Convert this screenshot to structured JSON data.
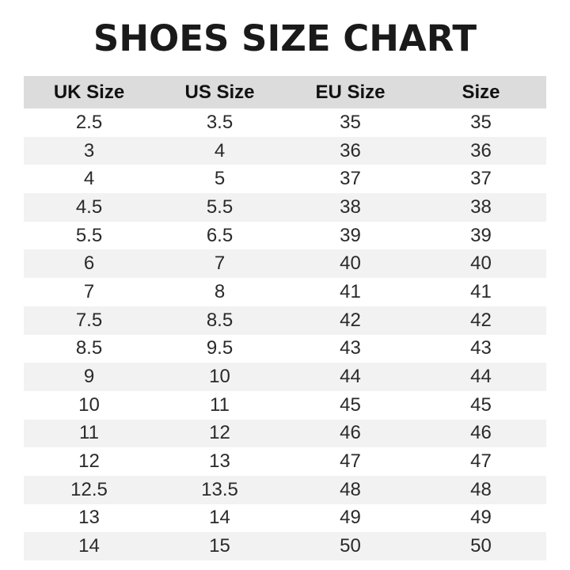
{
  "title": "SHOES SIZE CHART",
  "table": {
    "headers": [
      "UK Size",
      "US Size",
      "EU Size",
      "Size"
    ],
    "rows": [
      [
        "2.5",
        "3.5",
        "35",
        "35"
      ],
      [
        "3",
        "4",
        "36",
        "36"
      ],
      [
        "4",
        "5",
        "37",
        "37"
      ],
      [
        "4.5",
        "5.5",
        "38",
        "38"
      ],
      [
        "5.5",
        "6.5",
        "39",
        "39"
      ],
      [
        "6",
        "7",
        "40",
        "40"
      ],
      [
        "7",
        "8",
        "41",
        "41"
      ],
      [
        "7.5",
        "8.5",
        "42",
        "42"
      ],
      [
        "8.5",
        "9.5",
        "43",
        "43"
      ],
      [
        "9",
        "10",
        "44",
        "44"
      ],
      [
        "10",
        "11",
        "45",
        "45"
      ],
      [
        "11",
        "12",
        "46",
        "46"
      ],
      [
        "12",
        "13",
        "47",
        "47"
      ],
      [
        "12.5",
        "13.5",
        "48",
        "48"
      ],
      [
        "13",
        "14",
        "49",
        "49"
      ],
      [
        "14",
        "15",
        "50",
        "50"
      ]
    ]
  },
  "colors": {
    "header_bg": "#dcdcdc",
    "stripe_bg": "#f2f2f2",
    "text": "#222222"
  }
}
